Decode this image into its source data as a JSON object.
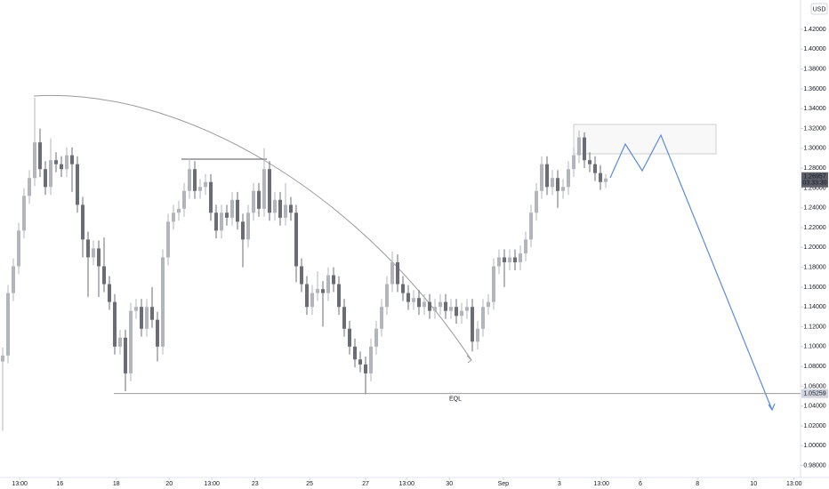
{
  "chart_data": {
    "type": "candlestick",
    "currency": "USD",
    "countdown": "03:33:30",
    "xlim": [
      -0.5,
      149.5
    ],
    "ylim": [
      0.968,
      1.4496
    ],
    "xticks": [
      {
        "value": 3.2,
        "label": "13:00"
      },
      {
        "value": 10.7,
        "label": "16"
      },
      {
        "value": 21.3,
        "label": "18"
      },
      {
        "value": 31.2,
        "label": "20"
      },
      {
        "value": 39.2,
        "label": "13:00"
      },
      {
        "value": 47.3,
        "label": "23"
      },
      {
        "value": 57.5,
        "label": "25"
      },
      {
        "value": 68,
        "label": "27"
      },
      {
        "value": 75.7,
        "label": "13:00"
      },
      {
        "value": 83.7,
        "label": "30"
      },
      {
        "value": 93.8,
        "label": "Sep"
      },
      {
        "value": 104.3,
        "label": "3"
      },
      {
        "value": 112.2,
        "label": "13:00"
      },
      {
        "value": 119.5,
        "label": "6"
      },
      {
        "value": 130.2,
        "label": "8"
      },
      {
        "value": 140.7,
        "label": "10"
      },
      {
        "value": 148.3,
        "label": "13:00"
      }
    ],
    "yticks": [
      {
        "value": 0.98,
        "label": "0.98000"
      },
      {
        "value": 1.0,
        "label": "1.00000"
      },
      {
        "value": 1.02,
        "label": "1.02000"
      },
      {
        "value": 1.04,
        "label": "1.04000"
      },
      {
        "value": 1.06,
        "label": "1.06000"
      },
      {
        "value": 1.08,
        "label": "1.08000"
      },
      {
        "value": 1.1,
        "label": "1.10000"
      },
      {
        "value": 1.12,
        "label": "1.12000"
      },
      {
        "value": 1.14,
        "label": "1.14000"
      },
      {
        "value": 1.16,
        "label": "1.16000"
      },
      {
        "value": 1.18,
        "label": "1.18000"
      },
      {
        "value": 1.2,
        "label": "1.20000"
      },
      {
        "value": 1.22,
        "label": "1.22000"
      },
      {
        "value": 1.24,
        "label": "1.24000"
      },
      {
        "value": 1.26,
        "label": "1.26000"
      },
      {
        "value": 1.28,
        "label": "1.28000"
      },
      {
        "value": 1.3,
        "label": "1.30000"
      },
      {
        "value": 1.32,
        "label": "1.32000"
      },
      {
        "value": 1.34,
        "label": "1.34000"
      },
      {
        "value": 1.36,
        "label": "1.36000"
      },
      {
        "value": 1.38,
        "label": "1.38000"
      },
      {
        "value": 1.4,
        "label": "1.40000"
      },
      {
        "value": 1.42,
        "label": "1.42000"
      }
    ],
    "up_color": "#b2b5be",
    "down_color": "#6a6d78",
    "eql": {
      "label": "EQL",
      "price": 1.05259
    },
    "open": [
      1.085,
      1.091,
      1.154,
      1.181,
      1.217,
      1.252,
      1.27,
      1.306,
      1.279,
      1.261,
      1.288,
      1.284,
      1.279,
      1.293,
      1.284,
      1.243,
      1.208,
      1.19,
      1.199,
      1.181,
      1.163,
      1.145,
      1.1,
      1.109,
      1.073,
      1.136,
      1.14,
      1.118,
      1.14,
      1.127,
      1.1,
      1.19,
      1.226,
      1.235,
      1.239,
      1.257,
      1.279,
      1.257,
      1.261,
      1.266,
      1.235,
      1.217,
      1.235,
      1.23,
      1.248,
      1.226,
      1.208,
      1.235,
      1.257,
      1.239,
      1.279,
      1.235,
      1.248,
      1.23,
      1.243,
      1.235,
      1.181,
      1.163,
      1.14,
      1.154,
      1.158,
      1.154,
      1.172,
      1.163,
      1.14,
      1.118,
      1.1,
      1.087,
      1.082,
      1.073,
      1.1,
      1.118,
      1.14,
      1.163,
      1.185,
      1.163,
      1.154,
      1.145,
      1.149,
      1.14,
      1.145,
      1.136,
      1.14,
      1.145,
      1.136,
      1.14,
      1.131,
      1.136,
      1.14,
      1.105,
      1.118,
      1.14,
      1.145,
      1.181,
      1.19,
      1.185,
      1.19,
      1.185,
      1.194,
      1.208,
      1.235,
      1.257,
      1.284,
      1.261,
      1.27,
      1.257,
      1.261,
      1.279,
      1.293,
      1.311,
      1.288,
      1.284,
      1.275,
      1.266
    ],
    "high": [
      1.099,
      1.162,
      1.189,
      1.225,
      1.26,
      1.278,
      1.351,
      1.32,
      1.287,
      1.31,
      1.296,
      1.292,
      1.301,
      1.301,
      1.292,
      1.251,
      1.216,
      1.207,
      1.207,
      1.21,
      1.171,
      1.153,
      1.117,
      1.117,
      1.144,
      1.148,
      1.148,
      1.148,
      1.16,
      1.135,
      1.198,
      1.234,
      1.243,
      1.247,
      1.265,
      1.29,
      1.287,
      1.269,
      1.274,
      1.274,
      1.243,
      1.243,
      1.243,
      1.256,
      1.256,
      1.234,
      1.243,
      1.265,
      1.265,
      1.3,
      1.287,
      1.256,
      1.256,
      1.265,
      1.251,
      1.243,
      1.189,
      1.171,
      1.162,
      1.176,
      1.166,
      1.18,
      1.18,
      1.171,
      1.148,
      1.126,
      1.108,
      1.095,
      1.09,
      1.108,
      1.126,
      1.148,
      1.171,
      1.196,
      1.193,
      1.171,
      1.162,
      1.157,
      1.157,
      1.153,
      1.153,
      1.148,
      1.153,
      1.153,
      1.148,
      1.148,
      1.144,
      1.148,
      1.148,
      1.126,
      1.148,
      1.153,
      1.189,
      1.198,
      1.198,
      1.198,
      1.198,
      1.202,
      1.216,
      1.243,
      1.265,
      1.292,
      1.292,
      1.278,
      1.278,
      1.269,
      1.287,
      1.301,
      1.318,
      1.316,
      1.296,
      1.292,
      1.283,
      1.274
    ],
    "low": [
      1.015,
      1.083,
      1.146,
      1.173,
      1.209,
      1.244,
      1.262,
      1.271,
      1.253,
      1.253,
      1.276,
      1.271,
      1.271,
      1.256,
      1.235,
      1.19,
      1.15,
      1.182,
      1.15,
      1.155,
      1.137,
      1.092,
      1.092,
      1.055,
      1.065,
      1.128,
      1.11,
      1.11,
      1.119,
      1.085,
      1.092,
      1.182,
      1.218,
      1.227,
      1.231,
      1.249,
      1.249,
      1.249,
      1.253,
      1.227,
      1.209,
      1.209,
      1.222,
      1.222,
      1.218,
      1.18,
      1.2,
      1.227,
      1.231,
      1.231,
      1.227,
      1.227,
      1.222,
      1.222,
      1.227,
      1.165,
      1.155,
      1.132,
      1.132,
      1.146,
      1.12,
      1.146,
      1.155,
      1.132,
      1.11,
      1.092,
      1.079,
      1.074,
      1.052,
      1.065,
      1.092,
      1.11,
      1.132,
      1.155,
      1.155,
      1.146,
      1.137,
      1.137,
      1.132,
      1.132,
      1.128,
      1.128,
      1.132,
      1.128,
      1.128,
      1.123,
      1.123,
      1.128,
      1.095,
      1.097,
      1.11,
      1.132,
      1.137,
      1.173,
      1.16,
      1.177,
      1.177,
      1.177,
      1.186,
      1.2,
      1.227,
      1.249,
      1.253,
      1.253,
      1.24,
      1.249,
      1.253,
      1.271,
      1.285,
      1.28,
      1.276,
      1.267,
      1.258,
      1.26
    ],
    "close": [
      1.091,
      1.154,
      1.181,
      1.217,
      1.252,
      1.27,
      1.306,
      1.279,
      1.261,
      1.288,
      1.284,
      1.279,
      1.293,
      1.284,
      1.243,
      1.208,
      1.19,
      1.199,
      1.181,
      1.163,
      1.145,
      1.1,
      1.109,
      1.073,
      1.136,
      1.14,
      1.118,
      1.14,
      1.127,
      1.1,
      1.19,
      1.226,
      1.235,
      1.239,
      1.257,
      1.279,
      1.257,
      1.261,
      1.266,
      1.235,
      1.217,
      1.235,
      1.23,
      1.248,
      1.226,
      1.208,
      1.235,
      1.257,
      1.239,
      1.279,
      1.235,
      1.248,
      1.23,
      1.243,
      1.235,
      1.181,
      1.163,
      1.14,
      1.154,
      1.158,
      1.154,
      1.172,
      1.163,
      1.14,
      1.118,
      1.1,
      1.087,
      1.082,
      1.073,
      1.1,
      1.118,
      1.14,
      1.163,
      1.185,
      1.163,
      1.154,
      1.145,
      1.149,
      1.14,
      1.145,
      1.136,
      1.14,
      1.145,
      1.136,
      1.14,
      1.131,
      1.136,
      1.14,
      1.105,
      1.118,
      1.14,
      1.145,
      1.181,
      1.19,
      1.185,
      1.19,
      1.185,
      1.194,
      1.208,
      1.235,
      1.257,
      1.284,
      1.261,
      1.27,
      1.257,
      1.261,
      1.279,
      1.293,
      1.311,
      1.288,
      1.284,
      1.275,
      1.266,
      1.26957
    ]
  }
}
